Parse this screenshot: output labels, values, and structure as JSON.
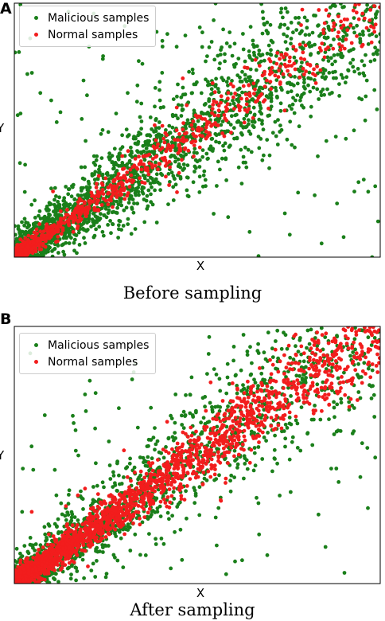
{
  "colors": {
    "malicious": "#1a7f1a",
    "normal": "#f21d1d",
    "axis": "#000000"
  },
  "chart_data": [
    {
      "type": "scatter",
      "panel": "A",
      "caption": "Before sampling",
      "xlabel": "X",
      "ylabel": "Y",
      "xlim": [
        0,
        1
      ],
      "ylim": [
        0,
        1
      ],
      "grid": false,
      "legend_position": "top-left",
      "series": [
        {
          "name": "Malicious samples",
          "color": "#1a7f1a",
          "distribution": {
            "count": 2400,
            "diagonal_slope": 1.0,
            "spread": 0.9,
            "density_toward_origin": "high"
          }
        },
        {
          "name": "Normal samples",
          "color": "#f21d1d",
          "distribution": {
            "count": 900,
            "diagonal_slope": 1.0,
            "spread": 0.35,
            "density_toward_origin": "very high"
          }
        }
      ]
    },
    {
      "type": "scatter",
      "panel": "B",
      "caption": "After sampling",
      "xlabel": "X",
      "ylabel": "Y",
      "xlim": [
        0,
        1
      ],
      "ylim": [
        0,
        1
      ],
      "grid": false,
      "legend_position": "top-left",
      "series": [
        {
          "name": "Malicious samples",
          "color": "#1a7f1a",
          "distribution": {
            "count": 1800,
            "diagonal_slope": 1.0,
            "spread": 0.9,
            "density_toward_origin": "high"
          }
        },
        {
          "name": "Normal samples",
          "color": "#f21d1d",
          "distribution": {
            "count": 2600,
            "diagonal_slope": 1.0,
            "spread": 0.45,
            "density_toward_origin": "very high"
          }
        }
      ]
    }
  ]
}
